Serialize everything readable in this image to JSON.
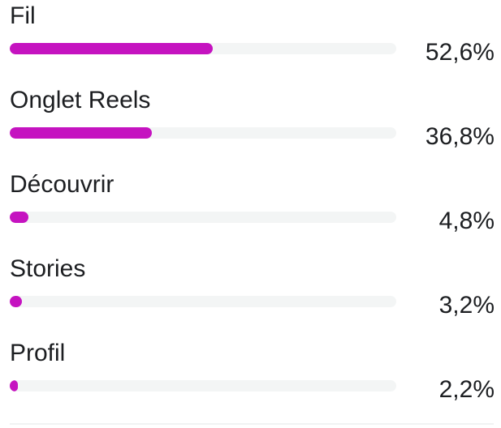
{
  "accent_color": "#c513c0",
  "rows": [
    {
      "label": "Fil",
      "percent_text": "52,6%",
      "fill_fraction": 0.526
    },
    {
      "label": "Onglet Reels",
      "percent_text": "36,8%",
      "fill_fraction": 0.368
    },
    {
      "label": "Découvrir",
      "percent_text": "4,8%",
      "fill_fraction": 0.048
    },
    {
      "label": "Stories",
      "percent_text": "3,2%",
      "fill_fraction": 0.032
    },
    {
      "label": "Profil",
      "percent_text": "2,2%",
      "fill_fraction": 0.022
    }
  ]
}
